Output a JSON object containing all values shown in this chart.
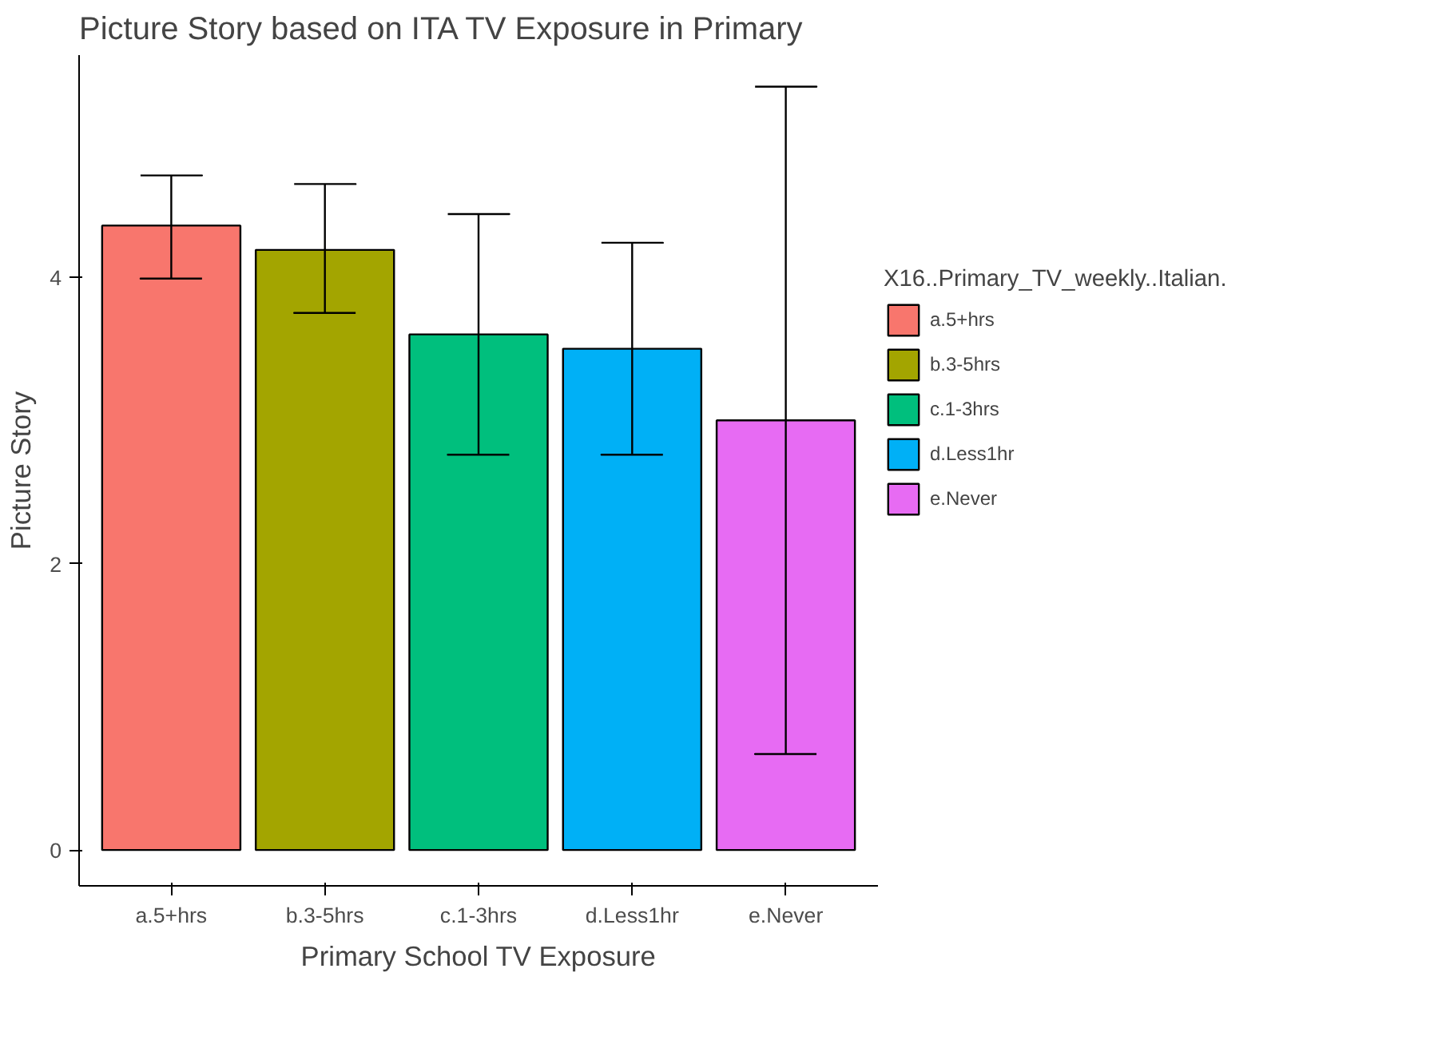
{
  "chart_data": {
    "type": "bar",
    "title": "Picture Story based on ITA TV Exposure in Primary",
    "xlabel": "Primary School TV Exposure",
    "ylabel": "Picture Story",
    "legend_title": "X16..Primary_TV_weekly..Italian.",
    "categories": [
      "a.5+hrs",
      "b.3-5hrs",
      "c.1-3hrs",
      "d.Less1hr",
      "e.Never"
    ],
    "series": [
      {
        "name": "a.5+hrs",
        "color": "#f8766d",
        "values": [
          4.36,
          null,
          null,
          null,
          null
        ],
        "errors": [
          [
            3.99,
            4.71
          ],
          null,
          null,
          null,
          null
        ]
      },
      {
        "name": "b.3-5hrs",
        "color": "#a3a500",
        "values": [
          null,
          4.19,
          null,
          null,
          null
        ],
        "errors": [
          null,
          [
            3.75,
            4.65
          ],
          null,
          null,
          null
        ]
      },
      {
        "name": "c.1-3hrs",
        "color": "#00bf7d",
        "values": [
          null,
          null,
          3.6,
          null,
          null
        ],
        "errors": [
          null,
          null,
          [
            2.76,
            4.44
          ],
          null,
          null
        ]
      },
      {
        "name": "d.Less1hr",
        "color": "#00b0f6",
        "values": [
          null,
          null,
          null,
          3.5,
          null
        ],
        "errors": [
          null,
          null,
          null,
          [
            2.76,
            4.24
          ],
          null
        ]
      },
      {
        "name": "e.Never",
        "color": "#e76bf3",
        "values": [
          null,
          null,
          null,
          null,
          3.0
        ],
        "errors": [
          null,
          null,
          null,
          null,
          [
            0.67,
            5.33
          ]
        ]
      }
    ],
    "ylim": [
      -0.25,
      5.55
    ],
    "yticks": [
      0,
      2,
      4
    ],
    "grid": false,
    "legend": "right"
  }
}
